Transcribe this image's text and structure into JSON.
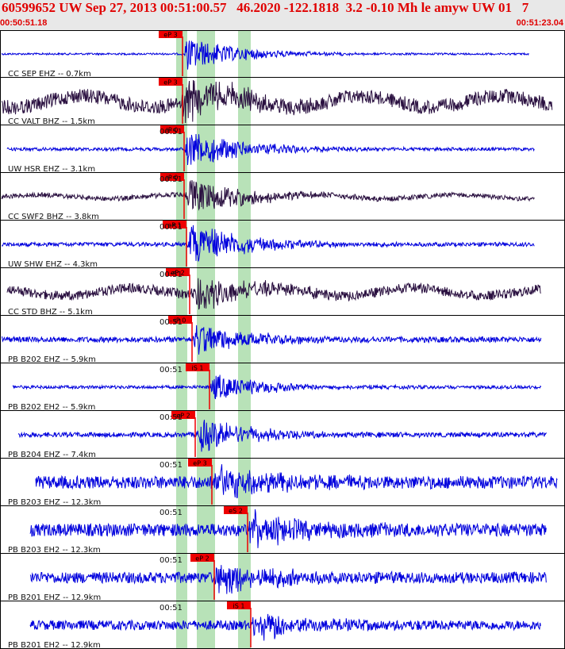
{
  "header": {
    "title": "60599652 UW Sep 27, 2013 00:51:00.57   46.2020 -122.1818  3.2 -0.10 Mh le amyw UW 01   7",
    "time_start": "00:50:51.18",
    "time_end": "00:51:23.04"
  },
  "colors": {
    "header_bg": "#e8e8e8",
    "title": "#e00000",
    "trace_blue": "#0000dd",
    "trace_dark": "#2a1040",
    "pick": "#ee0000",
    "band": "#b8e2b8"
  },
  "traces": [
    {
      "label": "CC SEP EHZ -- 0.7km",
      "pick": "eP 3",
      "time_tick": "",
      "color": "blue",
      "amp": 10,
      "noise": 1.2,
      "start": 0.0,
      "end": 0.94
    },
    {
      "label": "CC VALT BHZ -- 1.5km",
      "pick": "eP 3",
      "time_tick": "",
      "color": "dark",
      "amp": 12,
      "noise": 9,
      "start": 0.0,
      "end": 0.98
    },
    {
      "label": "UW HSR EHZ -- 3.1km",
      "pick": "iP 0",
      "time_tick": "00:51",
      "color": "blue",
      "amp": 12,
      "noise": 2,
      "start": 0.01,
      "end": 0.95
    },
    {
      "label": "CC SWF2 BHZ -- 3.8km",
      "pick": "iP 0",
      "time_tick": "00:51",
      "color": "dark",
      "amp": 11,
      "noise": 3,
      "start": 0.0,
      "end": 0.95
    },
    {
      "label": "UW SHW EHZ -- 4.3km",
      "pick": "eP 1",
      "time_tick": "00:51",
      "color": "blue",
      "amp": 13,
      "noise": 2.5,
      "start": 0.0,
      "end": 0.95
    },
    {
      "label": "CC STD BHZ -- 5.1km",
      "pick": "eP 2",
      "time_tick": "00:51",
      "color": "dark",
      "amp": 10,
      "noise": 6,
      "start": 0.01,
      "end": 0.96
    },
    {
      "label": "PB B202 EHZ -- 5.9km",
      "pick": "iP 0",
      "time_tick": "00:51",
      "color": "blue",
      "amp": 10,
      "noise": 3.5,
      "start": 0.0,
      "end": 0.96
    },
    {
      "label": "PB B202 EH2 -- 5.9km",
      "pick": "iS 1",
      "time_tick": "00:51",
      "color": "blue",
      "amp": 8,
      "noise": 2,
      "start": 0.02,
      "end": 0.96
    },
    {
      "label": "PB B204 EHZ -- 7.4km",
      "pick": "eP 2",
      "time_tick": "00:51",
      "color": "blue",
      "amp": 10,
      "noise": 3,
      "start": 0.03,
      "end": 0.97
    },
    {
      "label": "PB B203 EHZ -- 12.3km",
      "pick": "eP 3",
      "time_tick": "00:51",
      "color": "blue",
      "amp": 11,
      "noise": 8,
      "start": 0.06,
      "end": 0.99
    },
    {
      "label": "PB B203 EH2 -- 12.3km",
      "pick": "eS 2",
      "time_tick": "00:51",
      "color": "blue",
      "amp": 10,
      "noise": 8,
      "start": 0.05,
      "end": 0.97
    },
    {
      "label": "PB B201 EHZ -- 12.9km",
      "pick": "eP 2",
      "time_tick": "00:51",
      "color": "blue",
      "amp": 10,
      "noise": 7,
      "start": 0.05,
      "end": 0.97
    },
    {
      "label": "PB B201 EH2 -- 12.9km",
      "pick": "iS 1",
      "time_tick": "00:51",
      "color": "blue",
      "amp": 9,
      "noise": 6,
      "start": 0.05,
      "end": 0.96
    }
  ]
}
